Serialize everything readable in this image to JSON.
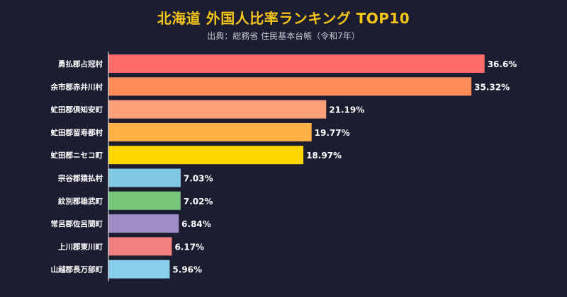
{
  "chart_data": {
    "type": "bar",
    "orientation": "horizontal",
    "title": "北海道 外国人比率ランキング TOP10",
    "subtitle": "出典：総務省 住民基本台帳（令和7年）",
    "categories": [
      "勇払郡占冠村",
      "余市郡赤井川村",
      "虻田郡倶知安町",
      "虻田郡留寿都村",
      "虻田郡ニセコ町",
      "宗谷郡猿払村",
      "紋別郡雄武町",
      "常呂郡佐呂間町",
      "上川郡東川町",
      "山越郡長万部町"
    ],
    "values": [
      36.6,
      35.32,
      21.19,
      19.77,
      18.97,
      7.03,
      7.02,
      6.84,
      6.17,
      5.96
    ],
    "value_labels": [
      "36.6%",
      "35.32%",
      "21.19%",
      "19.77%",
      "18.97%",
      "7.03%",
      "7.02%",
      "6.84%",
      "6.17%",
      "5.96%"
    ],
    "colors": [
      "#ff6b6b",
      "#ff8c5a",
      "#ffa07a",
      "#ffb347",
      "#ffd700",
      "#7ec8e3",
      "#77c77a",
      "#a08cc8",
      "#f08080",
      "#87ceeb"
    ],
    "xlim": [
      0,
      40
    ],
    "grid": false,
    "legend": "none"
  }
}
